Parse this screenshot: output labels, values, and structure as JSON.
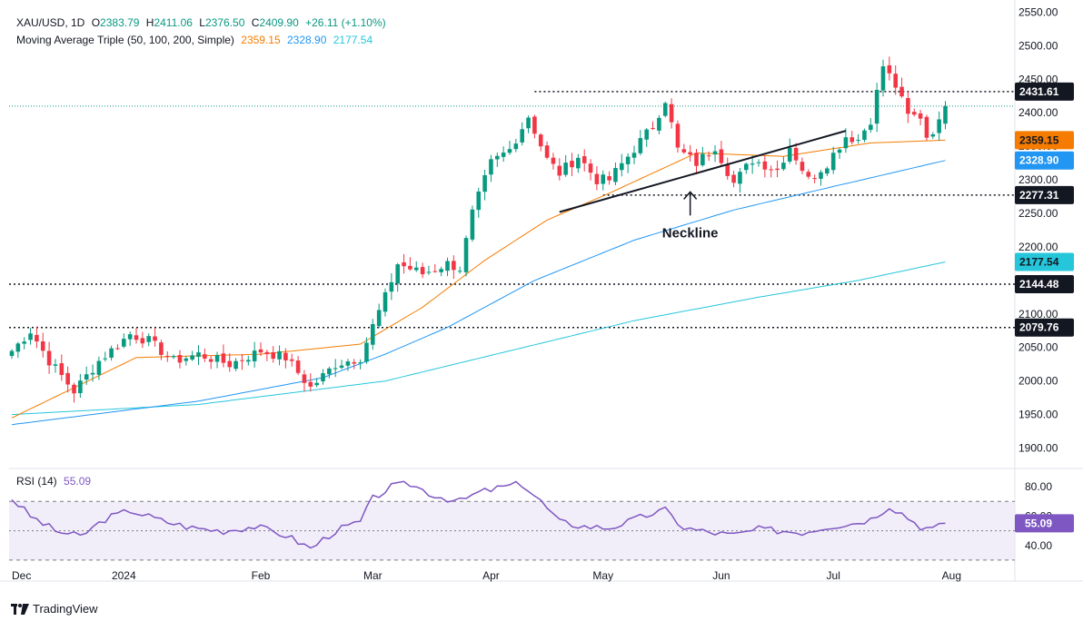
{
  "legend": {
    "symbol": "XAU/USD, 1D",
    "open_label": "O",
    "open": "2383.79",
    "high_label": "H",
    "high": "2411.06",
    "low_label": "L",
    "low": "2376.50",
    "close_label": "C",
    "close": "2409.90",
    "change": "+26.11 (+1.10%)",
    "ma_title": "Moving Average Triple (50, 100, 200, Simple)",
    "ma50": "2359.15",
    "ma100": "2328.90",
    "ma200": "2177.54",
    "rsi_title": "RSI (14)",
    "rsi_value": "55.09"
  },
  "annotation": "Neckline",
  "brand": "TradingView",
  "colors": {
    "up": "#089981",
    "down": "#f23645",
    "ma50": "#f57c00",
    "ma100": "#2196f3",
    "ma200": "#26c6da",
    "rsi": "#7e57c2",
    "rsi_band": "#ede7f6",
    "level_line": "#131722",
    "last_price": "#089981"
  },
  "chart_data": {
    "type": "candlestick",
    "main_axis": {
      "ticks": [
        "2550.00",
        "2500.00",
        "2450.00",
        "2400.00",
        "2350.00",
        "2300.00",
        "2250.00",
        "2200.00",
        "2150.00",
        "2100.00",
        "2050.00",
        "2000.00",
        "1950.00",
        "1900.00"
      ],
      "tick_values": [
        2550,
        2500,
        2450,
        2400,
        2350,
        2300,
        2250,
        2200,
        2150,
        2100,
        2050,
        2000,
        1950,
        1900
      ],
      "range": [
        1875,
        2560
      ]
    },
    "x_axis_labels": [
      "Dec",
      "2024",
      "Feb",
      "Mar",
      "Apr",
      "May",
      "Jun",
      "Jul",
      "Aug"
    ],
    "price_labels": [
      {
        "text": "2431.61",
        "value": 2431.61,
        "style": "level"
      },
      {
        "text": "2359.15",
        "value": 2359.15,
        "style": "ma50"
      },
      {
        "text": "2328.90",
        "value": 2328.9,
        "style": "ma100"
      },
      {
        "text": "2277.31",
        "value": 2277.31,
        "style": "level"
      },
      {
        "text": "2177.54",
        "value": 2177.54,
        "style": "ma200"
      },
      {
        "text": "2144.48",
        "value": 2144.48,
        "style": "level"
      },
      {
        "text": "2079.76",
        "value": 2079.76,
        "style": "level"
      }
    ],
    "horizontal_levels": [
      2431.61,
      2277.31,
      2144.48,
      2079.76
    ],
    "last_close": 2409.9,
    "neckline": {
      "from": {
        "bar": 88,
        "price": 2252
      },
      "to": {
        "bar": 134,
        "price": 2373
      }
    },
    "anchors": [
      {
        "bar": 0,
        "price": 2045
      },
      {
        "bar": 3,
        "price": 2075
      },
      {
        "bar": 6,
        "price": 2030
      },
      {
        "bar": 10,
        "price": 1985
      },
      {
        "bar": 14,
        "price": 2030
      },
      {
        "bar": 19,
        "price": 2070
      },
      {
        "bar": 22,
        "price": 2060
      },
      {
        "bar": 26,
        "price": 2030
      },
      {
        "bar": 30,
        "price": 2040
      },
      {
        "bar": 35,
        "price": 2025
      },
      {
        "bar": 40,
        "price": 2045
      },
      {
        "bar": 44,
        "price": 2035
      },
      {
        "bar": 48,
        "price": 1990
      },
      {
        "bar": 52,
        "price": 2025
      },
      {
        "bar": 56,
        "price": 2035
      },
      {
        "bar": 58,
        "price": 2082
      },
      {
        "bar": 60,
        "price": 2125
      },
      {
        "bar": 62,
        "price": 2175
      },
      {
        "bar": 66,
        "price": 2160
      },
      {
        "bar": 70,
        "price": 2175
      },
      {
        "bar": 72,
        "price": 2168
      },
      {
        "bar": 74,
        "price": 2250
      },
      {
        "bar": 77,
        "price": 2325
      },
      {
        "bar": 80,
        "price": 2345
      },
      {
        "bar": 83,
        "price": 2395
      },
      {
        "bar": 86,
        "price": 2330
      },
      {
        "bar": 88,
        "price": 2310
      },
      {
        "bar": 91,
        "price": 2335
      },
      {
        "bar": 94,
        "price": 2300
      },
      {
        "bar": 96,
        "price": 2300
      },
      {
        "bar": 99,
        "price": 2335
      },
      {
        "bar": 103,
        "price": 2380
      },
      {
        "bar": 105,
        "price": 2420
      },
      {
        "bar": 107,
        "price": 2345
      },
      {
        "bar": 110,
        "price": 2325
      },
      {
        "bar": 113,
        "price": 2350
      },
      {
        "bar": 116,
        "price": 2295
      },
      {
        "bar": 119,
        "price": 2330
      },
      {
        "bar": 123,
        "price": 2315
      },
      {
        "bar": 125,
        "price": 2350
      },
      {
        "bar": 128,
        "price": 2300
      },
      {
        "bar": 131,
        "price": 2325
      },
      {
        "bar": 134,
        "price": 2365
      },
      {
        "bar": 136,
        "price": 2360
      },
      {
        "bar": 138,
        "price": 2390
      },
      {
        "bar": 140,
        "price": 2470
      },
      {
        "bar": 142,
        "price": 2440
      },
      {
        "bar": 144,
        "price": 2395
      },
      {
        "bar": 146,
        "price": 2395
      },
      {
        "bar": 147,
        "price": 2365
      },
      {
        "bar": 149,
        "price": 2384
      },
      {
        "bar": 150,
        "price": 2409.9
      }
    ],
    "ma_anchors": {
      "ma50": [
        {
          "bar": 0,
          "price": 1945
        },
        {
          "bar": 20,
          "price": 2035
        },
        {
          "bar": 40,
          "price": 2040
        },
        {
          "bar": 56,
          "price": 2055
        },
        {
          "bar": 66,
          "price": 2110
        },
        {
          "bar": 76,
          "price": 2180
        },
        {
          "bar": 86,
          "price": 2240
        },
        {
          "bar": 96,
          "price": 2280
        },
        {
          "bar": 110,
          "price": 2340
        },
        {
          "bar": 124,
          "price": 2335
        },
        {
          "bar": 138,
          "price": 2355
        },
        {
          "bar": 150,
          "price": 2359.15
        }
      ],
      "ma100": [
        {
          "bar": 0,
          "price": 1935
        },
        {
          "bar": 30,
          "price": 1970
        },
        {
          "bar": 50,
          "price": 2005
        },
        {
          "bar": 60,
          "price": 2040
        },
        {
          "bar": 70,
          "price": 2080
        },
        {
          "bar": 84,
          "price": 2150
        },
        {
          "bar": 100,
          "price": 2210
        },
        {
          "bar": 116,
          "price": 2255
        },
        {
          "bar": 132,
          "price": 2290
        },
        {
          "bar": 150,
          "price": 2328.9
        }
      ],
      "ma200": [
        {
          "bar": 0,
          "price": 1950
        },
        {
          "bar": 30,
          "price": 1965
        },
        {
          "bar": 60,
          "price": 2000
        },
        {
          "bar": 80,
          "price": 2045
        },
        {
          "bar": 100,
          "price": 2090
        },
        {
          "bar": 120,
          "price": 2125
        },
        {
          "bar": 136,
          "price": 2150
        },
        {
          "bar": 150,
          "price": 2177.54
        }
      ]
    },
    "rsi": {
      "ticks": [
        "80.00",
        "60.00",
        "40.00"
      ],
      "tick_values": [
        80,
        60,
        40
      ],
      "range": [
        25,
        90
      ],
      "band": [
        30,
        70
      ],
      "levels": [
        50
      ],
      "anchors": [
        {
          "bar": 0,
          "value": 72
        },
        {
          "bar": 3,
          "value": 60
        },
        {
          "bar": 7,
          "value": 50
        },
        {
          "bar": 11,
          "value": 46
        },
        {
          "bar": 15,
          "value": 58
        },
        {
          "bar": 19,
          "value": 64
        },
        {
          "bar": 24,
          "value": 57
        },
        {
          "bar": 29,
          "value": 52
        },
        {
          "bar": 34,
          "value": 50
        },
        {
          "bar": 39,
          "value": 53
        },
        {
          "bar": 44,
          "value": 47
        },
        {
          "bar": 48,
          "value": 38
        },
        {
          "bar": 52,
          "value": 50
        },
        {
          "bar": 56,
          "value": 56
        },
        {
          "bar": 58,
          "value": 72
        },
        {
          "bar": 61,
          "value": 80
        },
        {
          "bar": 64,
          "value": 82
        },
        {
          "bar": 68,
          "value": 74
        },
        {
          "bar": 72,
          "value": 70
        },
        {
          "bar": 75,
          "value": 76
        },
        {
          "bar": 79,
          "value": 80
        },
        {
          "bar": 82,
          "value": 82
        },
        {
          "bar": 85,
          "value": 70
        },
        {
          "bar": 88,
          "value": 56
        },
        {
          "bar": 92,
          "value": 53
        },
        {
          "bar": 96,
          "value": 52
        },
        {
          "bar": 99,
          "value": 56
        },
        {
          "bar": 103,
          "value": 62
        },
        {
          "bar": 105,
          "value": 64
        },
        {
          "bar": 108,
          "value": 52
        },
        {
          "bar": 112,
          "value": 49
        },
        {
          "bar": 116,
          "value": 47
        },
        {
          "bar": 120,
          "value": 51
        },
        {
          "bar": 124,
          "value": 50
        },
        {
          "bar": 127,
          "value": 49
        },
        {
          "bar": 131,
          "value": 53
        },
        {
          "bar": 135,
          "value": 55
        },
        {
          "bar": 138,
          "value": 58
        },
        {
          "bar": 141,
          "value": 67
        },
        {
          "bar": 143,
          "value": 62
        },
        {
          "bar": 146,
          "value": 53
        },
        {
          "bar": 148,
          "value": 51
        },
        {
          "bar": 150,
          "value": 55.09
        }
      ]
    },
    "total_bars": 151
  }
}
